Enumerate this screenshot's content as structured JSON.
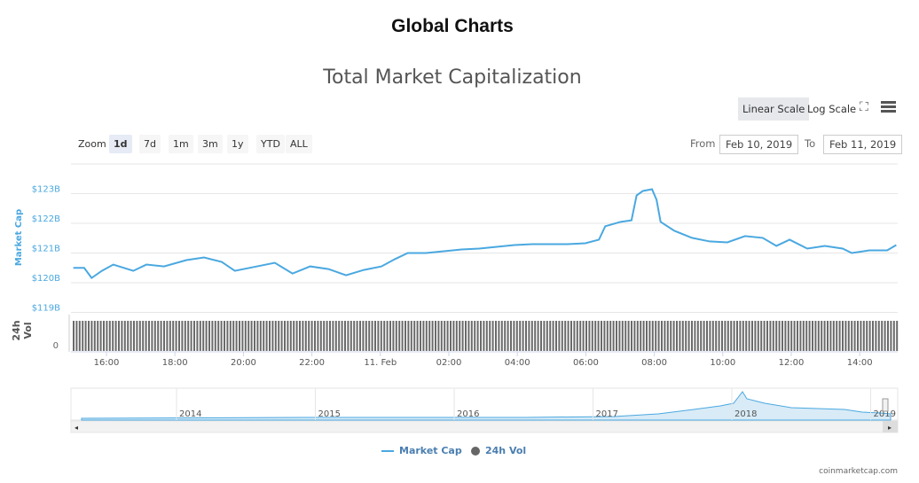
{
  "page": {
    "title": "Global Charts",
    "credit": "coinmarketcap.com"
  },
  "toolbar": {
    "linear": "Linear Scale",
    "log": "Log Scale",
    "fullscreen_icon": "fullscreen-icon",
    "menu_icon": "hamburger-menu-icon"
  },
  "zoom": {
    "label": "Zoom",
    "buttons": [
      "1d",
      "7d",
      "1m",
      "3m",
      "1y",
      "YTD",
      "ALL"
    ],
    "selected": "1d"
  },
  "range": {
    "from_label": "From",
    "from": "Feb 10, 2019",
    "to_label": "To",
    "to": "Feb 11, 2019"
  },
  "legend": {
    "market_cap": "Market Cap",
    "vol": "24h Vol"
  },
  "chart_data": {
    "type": "line",
    "title": "Total Market Capitalization",
    "ylabel": "Market Cap",
    "ylabel2": "24h Vol",
    "yticks": [
      "$119B",
      "$120B",
      "$121B",
      "$122B",
      "$123B"
    ],
    "ylim": [
      119,
      123.5
    ],
    "vol_tick": "0",
    "xticks": [
      "16:00",
      "18:00",
      "20:00",
      "22:00",
      "11. Feb",
      "02:00",
      "04:00",
      "06:00",
      "08:00",
      "10:00",
      "12:00",
      "14:00"
    ],
    "series": [
      {
        "name": "Market Cap",
        "color": "#4aa8e0",
        "unit": "$B",
        "points": [
          [
            "Feb 10 15:02",
            120.5
          ],
          [
            "Feb 10 15:21",
            120.5
          ],
          [
            "Feb 10 15:34",
            120.16
          ],
          [
            "Feb 10 15:52",
            120.4
          ],
          [
            "Feb 10 16:12",
            120.61
          ],
          [
            "Feb 10 16:47",
            120.4
          ],
          [
            "Feb 10 17:10",
            120.61
          ],
          [
            "Feb 10 17:41",
            120.55
          ],
          [
            "Feb 10 18:20",
            120.76
          ],
          [
            "Feb 10 18:51",
            120.85
          ],
          [
            "Feb 10 19:22",
            120.7
          ],
          [
            "Feb 10 19:45",
            120.4
          ],
          [
            "Feb 10 20:24",
            120.55
          ],
          [
            "Feb 10 20:55",
            120.67
          ],
          [
            "Feb 10 21:26",
            120.31
          ],
          [
            "Feb 10 21:57",
            120.55
          ],
          [
            "Feb 10 22:29",
            120.46
          ],
          [
            "Feb 10 23:00",
            120.25
          ],
          [
            "Feb 10 23:31",
            120.43
          ],
          [
            "Feb 11 00:02",
            120.55
          ],
          [
            "Feb 11 00:25",
            120.79
          ],
          [
            "Feb 11 00:48",
            121.0
          ],
          [
            "Feb 11 01:20",
            121.0
          ],
          [
            "Feb 11 01:51",
            121.06
          ],
          [
            "Feb 11 02:22",
            121.12
          ],
          [
            "Feb 11 02:53",
            121.15
          ],
          [
            "Feb 11 03:24",
            121.21
          ],
          [
            "Feb 11 03:55",
            121.27
          ],
          [
            "Feb 11 04:26",
            121.3
          ],
          [
            "Feb 11 04:57",
            121.3
          ],
          [
            "Feb 11 05:28",
            121.3
          ],
          [
            "Feb 11 05:59",
            121.33
          ],
          [
            "Feb 11 06:23",
            121.45
          ],
          [
            "Feb 11 06:34",
            121.9
          ],
          [
            "Feb 11 07:01",
            122.05
          ],
          [
            "Feb 11 07:20",
            122.1
          ],
          [
            "Feb 11 07:29",
            122.94
          ],
          [
            "Feb 11 07:40",
            123.09
          ],
          [
            "Feb 11 07:56",
            123.15
          ],
          [
            "Feb 11 08:04",
            122.79
          ],
          [
            "Feb 11 08:11",
            122.05
          ],
          [
            "Feb 11 08:35",
            121.75
          ],
          [
            "Feb 11 09:06",
            121.51
          ],
          [
            "Feb 11 09:37",
            121.39
          ],
          [
            "Feb 11 10:08",
            121.36
          ],
          [
            "Feb 11 10:39",
            121.57
          ],
          [
            "Feb 11 11:10",
            121.51
          ],
          [
            "Feb 11 11:34",
            121.24
          ],
          [
            "Feb 11 11:57",
            121.45
          ],
          [
            "Feb 11 12:28",
            121.15
          ],
          [
            "Feb 11 12:59",
            121.24
          ],
          [
            "Feb 11 13:30",
            121.15
          ],
          [
            "Feb 11 13:46",
            121.0
          ],
          [
            "Feb 11 14:17",
            121.09
          ],
          [
            "Feb 11 14:48",
            121.09
          ],
          [
            "Feb 11 15:04",
            121.27
          ]
        ]
      },
      {
        "name": "24h Vol",
        "color": "#6a6a6a"
      }
    ],
    "navigator": {
      "xticks": [
        "2014",
        "2015",
        "2016",
        "2017",
        "2018",
        "2019"
      ]
    }
  }
}
